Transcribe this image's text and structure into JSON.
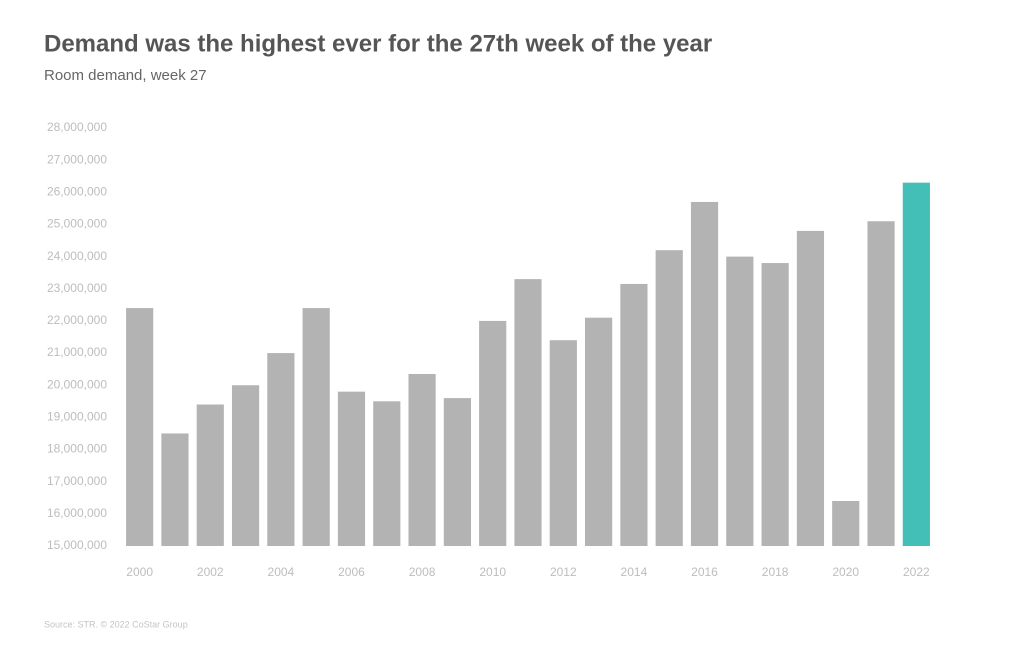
{
  "chart_data": {
    "type": "bar",
    "title": "Demand was the highest ever for the 27th week of the year",
    "subtitle": "Room demand, week 27",
    "source": "Source: STR. © 2022 CoStar Group",
    "categories": [
      "2000",
      null,
      "2002",
      null,
      "2004",
      null,
      "2006",
      null,
      "2008",
      null,
      "2010",
      null,
      "2012",
      null,
      "2014",
      null,
      "2016",
      null,
      "2018",
      null,
      "2020",
      null,
      "2022"
    ],
    "values": [
      22400000,
      18500000,
      19400000,
      20000000,
      21000000,
      22400000,
      19800000,
      19500000,
      20350000,
      19600000,
      22000000,
      23300000,
      21400000,
      22100000,
      23150000,
      24200000,
      25700000,
      24000000,
      23800000,
      24800000,
      16400000,
      25100000,
      26300000
    ],
    "colors": [
      "#b3b3b3",
      "#b3b3b3",
      "#b3b3b3",
      "#b3b3b3",
      "#b3b3b3",
      "#b3b3b3",
      "#b3b3b3",
      "#b3b3b3",
      "#b3b3b3",
      "#b3b3b3",
      "#b3b3b3",
      "#b3b3b3",
      "#b3b3b3",
      "#b3b3b3",
      "#b3b3b3",
      "#b3b3b3",
      "#b3b3b3",
      "#b3b3b3",
      "#b3b3b3",
      "#b3b3b3",
      "#b3b3b3",
      "#b3b3b3",
      "#44bfb7"
    ],
    "ylim": [
      15000000,
      28000000
    ],
    "yticks": [
      {
        "value": 15000000,
        "label": "15,000,000"
      },
      {
        "value": 16000000,
        "label": "16,000,000"
      },
      {
        "value": 17000000,
        "label": "17,000,000"
      },
      {
        "value": 18000000,
        "label": "18,000,000"
      },
      {
        "value": 19000000,
        "label": "19,000,000"
      },
      {
        "value": 20000000,
        "label": "20,000,000"
      },
      {
        "value": 21000000,
        "label": "21,000,000"
      },
      {
        "value": 22000000,
        "label": "22,000,000"
      },
      {
        "value": 23000000,
        "label": "23,000,000"
      },
      {
        "value": 24000000,
        "label": "24,000,000"
      },
      {
        "value": 25000000,
        "label": "25,000,000"
      },
      {
        "value": 26000000,
        "label": "26,000,000"
      },
      {
        "value": 27000000,
        "label": "27,000,000"
      },
      {
        "value": 28000000,
        "label": "28,000,000"
      }
    ],
    "grid": false
  }
}
